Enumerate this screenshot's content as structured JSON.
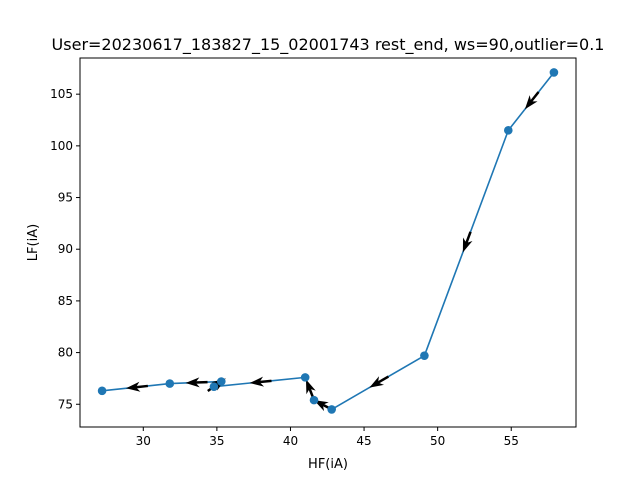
{
  "chart_data": {
    "type": "line",
    "title": "User=20230617_183827_15_02001743 rest_end, ws=90,outlier=0.1",
    "xlabel": "HF(iA)",
    "ylabel": "LF(iA)",
    "xlim": [
      25.7,
      59.4
    ],
    "ylim": [
      72.8,
      108.5
    ],
    "xticks": [
      30,
      35,
      40,
      45,
      50,
      55
    ],
    "yticks": [
      75,
      80,
      85,
      90,
      95,
      100,
      105
    ],
    "grid": false,
    "legend": "none",
    "series": [
      {
        "x": [
          57.9,
          54.8,
          49.1,
          42.8,
          41.6,
          41.0,
          34.8,
          35.3,
          31.8,
          27.2
        ],
        "y": [
          107.1,
          101.5,
          79.7,
          74.5,
          75.4,
          77.6,
          76.7,
          77.2,
          77.0,
          76.3
        ],
        "marker": "circle",
        "arrows": "direction of travel between consecutive points"
      }
    ],
    "colors": {
      "line": "#1f77b4",
      "marker": "#1f77b4",
      "arrow": "#000000",
      "axes": "#000000"
    }
  }
}
